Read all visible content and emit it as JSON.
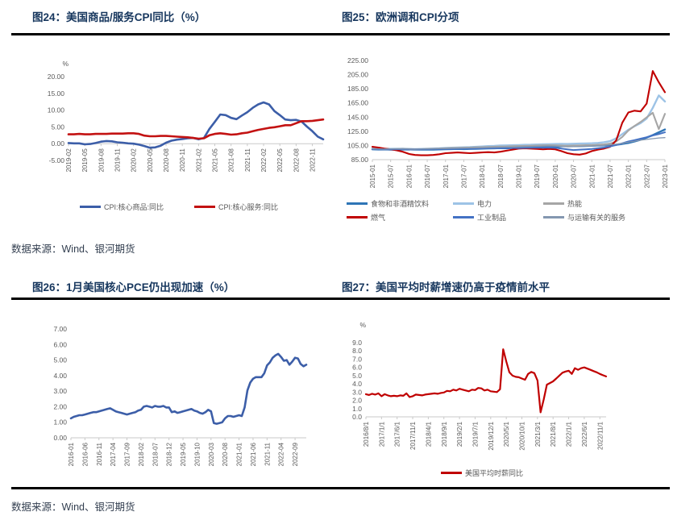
{
  "figures": [
    {
      "title": "图24：美国商品/服务CPI同比（%）"
    },
    {
      "title": "图25：欧洲调和CPI分项"
    },
    {
      "title": "图26：1月美国核心PCE仍出现加速（%）"
    },
    {
      "title": "图27：美国平均时薪增速仍高于疫情前水平"
    }
  ],
  "sources": {
    "top": "数据来源：Wind、银河期货",
    "bottom": "数据来源：Wind、银河期货"
  },
  "colors": {
    "title_navy": "#17375E",
    "rule_black": "#000000",
    "axis_gray": "#C9C9C9",
    "text_gray": "#595959"
  },
  "chart_data": [
    {
      "type": "line",
      "title": "美国商品/服务CPI同比",
      "unit": "%",
      "ylim": [
        -5,
        20
      ],
      "yticks": [
        -5,
        0,
        5,
        10,
        15,
        20
      ],
      "ydecimals": 2,
      "baseline": 0,
      "grid": false,
      "legend": true,
      "tick_every": 3,
      "x_tick_labels": [
        "2019-02",
        "2019-05",
        "2019-08",
        "2019-11",
        "2020-02",
        "2020-05",
        "2020-08",
        "2020-11",
        "2021-02",
        "2021-05",
        "2021-08",
        "2021-11",
        "2022-02",
        "2022-05",
        "2022-08",
        "2022-11"
      ],
      "x_range_note": "monthly 2019-02 to 2023-01",
      "series": [
        {
          "name": "CPI:核心商品:同比",
          "color": "#3C5EA8",
          "width": 2.6,
          "values": [
            0.2,
            0.1,
            0.1,
            -0.2,
            -0.1,
            0.2,
            0.6,
            0.8,
            0.7,
            0.4,
            0.3,
            0.1,
            0.0,
            -0.3,
            -0.7,
            -1.2,
            -1.1,
            -0.6,
            0.3,
            0.9,
            1.2,
            1.4,
            1.6,
            1.7,
            1.3,
            1.7,
            4.4,
            6.5,
            8.7,
            8.5,
            7.7,
            7.3,
            8.4,
            9.4,
            10.7,
            11.7,
            12.3,
            11.7,
            9.7,
            8.5,
            7.2,
            7.0,
            7.1,
            6.6,
            5.1,
            3.7,
            2.1,
            1.3
          ]
        },
        {
          "name": "CPI:核心服务:同比",
          "color": "#C31212",
          "width": 2.6,
          "values": [
            2.8,
            2.8,
            2.9,
            2.8,
            2.8,
            2.9,
            2.9,
            2.9,
            3.0,
            3.0,
            3.0,
            3.1,
            3.1,
            2.9,
            2.4,
            2.2,
            2.2,
            2.3,
            2.3,
            2.2,
            2.1,
            2.0,
            1.9,
            1.7,
            1.5,
            1.6,
            2.5,
            2.9,
            3.1,
            2.9,
            2.7,
            2.8,
            3.1,
            3.3,
            3.7,
            4.1,
            4.4,
            4.7,
            4.9,
            5.2,
            5.5,
            5.5,
            6.1,
            6.7,
            6.7,
            6.8,
            7.0,
            7.2
          ]
        }
      ]
    },
    {
      "type": "line",
      "title": "欧洲调和CPI分项",
      "unit": null,
      "ylim": [
        85,
        225
      ],
      "yticks": [
        85,
        105,
        125,
        145,
        165,
        185,
        205,
        225
      ],
      "ydecimals": 2,
      "baseline": 85,
      "grid": false,
      "legend": true,
      "tick_every": 3,
      "x_tick_labels": [
        "2015-01",
        "2015-07",
        "2016-01",
        "2016-07",
        "2017-01",
        "2017-07",
        "2018-01",
        "2018-07",
        "2019-01",
        "2019-07",
        "2020-01",
        "2020-07",
        "2021-01",
        "2021-07",
        "2022-01",
        "2022-07",
        "2023-01"
      ],
      "x_range_note": "bimonthly 2015-01 to 2023-01",
      "series": [
        {
          "name": "食物和非酒精饮料",
          "color": "#2E75B6",
          "width": 2.4,
          "values": [
            99.6,
            99.3,
            99.5,
            99.2,
            99.0,
            99.3,
            99.5,
            99.1,
            99.3,
            99.2,
            99.1,
            99.4,
            99.7,
            99.9,
            100.1,
            99.9,
            100.1,
            100.3,
            100.6,
            100.9,
            101.1,
            101.3,
            101.1,
            101.4,
            101.6,
            101.9,
            102.2,
            102.1,
            102.4,
            102.6,
            103.1,
            103.9,
            104.5,
            104.2,
            104.1,
            104.4,
            104.6,
            104.9,
            105.1,
            105.4,
            106.1,
            107.2,
            108.6,
            110.6,
            113.1,
            116.2,
            119.6,
            123.6,
            127.6
          ]
        },
        {
          "name": "电力",
          "color": "#9DC3E6",
          "width": 2.4,
          "values": [
            100.6,
            100.4,
            100.1,
            100.3,
            100.5,
            100.4,
            100.1,
            99.9,
            100.1,
            100.4,
            100.7,
            101.1,
            101.6,
            101.9,
            102.1,
            102.4,
            102.6,
            103.1,
            103.6,
            104.1,
            104.4,
            104.9,
            105.1,
            105.4,
            105.6,
            105.9,
            106.1,
            106.4,
            106.6,
            106.9,
            107.1,
            107.3,
            107.1,
            107.4,
            107.6,
            107.9,
            108.1,
            108.6,
            109.6,
            111.1,
            115.1,
            121.1,
            127.1,
            132.1,
            136.6,
            143.1,
            158.1,
            175.6,
            167.1
          ]
        },
        {
          "name": "热能",
          "color": "#A6A6A6",
          "width": 2.1,
          "values": [
            100.1,
            99.9,
            99.6,
            99.8,
            99.9,
            100.1,
            99.9,
            99.6,
            99.8,
            100.1,
            100.4,
            100.7,
            101.1,
            101.4,
            101.6,
            101.9,
            102.1,
            102.4,
            102.6,
            102.9,
            103.1,
            103.4,
            103.6,
            103.9,
            104.1,
            104.4,
            104.6,
            104.9,
            105.1,
            105.3,
            105.1,
            104.9,
            104.6,
            104.9,
            105.1,
            105.4,
            105.6,
            106.1,
            106.6,
            107.6,
            110.6,
            117.1,
            126.1,
            132.6,
            138.1,
            144.6,
            151.1,
            128.1,
            149.6
          ]
        },
        {
          "name": "燃气",
          "color": "#C00000",
          "width": 2.1,
          "values": [
            103.1,
            102.1,
            100.6,
            99.6,
            98.1,
            96.1,
            93.1,
            91.6,
            91.1,
            91.1,
            91.6,
            92.6,
            94.1,
            94.6,
            95.1,
            94.6,
            94.1,
            94.6,
            95.1,
            95.6,
            95.1,
            96.1,
            97.6,
            99.1,
            100.6,
            101.1,
            100.6,
            100.1,
            99.6,
            100.1,
            99.6,
            97.1,
            94.1,
            92.6,
            92.1,
            93.6,
            97.1,
            99.1,
            100.6,
            103.1,
            112.1,
            137.1,
            151.6,
            154.1,
            153.1,
            164.1,
            210.1,
            194.1,
            180.1
          ]
        },
        {
          "name": "工业制品",
          "color": "#4472C4",
          "width": 2.0,
          "values": [
            99.9,
            99.6,
            99.4,
            99.6,
            99.7,
            99.9,
            99.6,
            99.4,
            99.6,
            99.8,
            99.9,
            100.1,
            100.3,
            100.1,
            100.4,
            100.6,
            100.4,
            100.7,
            100.9,
            101.1,
            101.3,
            101.1,
            101.4,
            101.6,
            101.4,
            101.6,
            101.9,
            102.1,
            101.9,
            102.1,
            101.6,
            100.6,
            99.6,
            98.6,
            99.1,
            99.6,
            100.1,
            101.1,
            102.1,
            103.6,
            105.6,
            108.1,
            110.6,
            112.6,
            114.6,
            116.6,
            119.1,
            121.1,
            123.6
          ]
        },
        {
          "name": "与运输有关的服务",
          "color": "#8497B0",
          "width": 1.3,
          "values": [
            100.3,
            100.1,
            99.9,
            100.1,
            100.3,
            100.1,
            99.9,
            99.7,
            99.9,
            100.1,
            100.3,
            100.5,
            100.7,
            100.9,
            101.1,
            101.3,
            101.5,
            101.7,
            101.9,
            102.1,
            102.3,
            102.5,
            102.7,
            102.9,
            103.1,
            103.3,
            103.6,
            103.9,
            104.1,
            104.3,
            104.1,
            103.6,
            103.1,
            103.3,
            103.6,
            103.9,
            104.1,
            104.6,
            105.1,
            105.9,
            106.9,
            108.1,
            109.6,
            111.1,
            112.6,
            113.6,
            114.6,
            115.6,
            116.1
          ]
        }
      ]
    },
    {
      "type": "line",
      "title": "1月美国核心PCE仍出现加速",
      "unit": null,
      "ylim": [
        0,
        7
      ],
      "yticks": [
        0,
        1,
        2,
        3,
        4,
        5,
        6,
        7
      ],
      "ydecimals": 2,
      "baseline": 0,
      "grid": false,
      "legend": false,
      "tick_every": 5,
      "x_tick_labels": [
        "2016-01",
        "2016-06",
        "2016-11",
        "2017-04",
        "2017-09",
        "2018-02",
        "2018-07",
        "2018-12",
        "2019-05",
        "2019-10",
        "2020-03",
        "2020-08",
        "2021-01",
        "2021-06",
        "2021-11",
        "2022-04",
        "2022-09"
      ],
      "x_range_note": "monthly 2016-01 to 2023-01",
      "series": [
        {
          "color": "#3C5EA8",
          "width": 2.6,
          "values": [
            1.25,
            1.35,
            1.4,
            1.45,
            1.45,
            1.5,
            1.55,
            1.6,
            1.65,
            1.65,
            1.7,
            1.75,
            1.8,
            1.85,
            1.9,
            1.8,
            1.7,
            1.65,
            1.6,
            1.55,
            1.5,
            1.55,
            1.6,
            1.65,
            1.75,
            1.8,
            2.0,
            2.05,
            2.0,
            1.95,
            2.05,
            2.0,
            2.0,
            2.05,
            1.95,
            1.95,
            1.65,
            1.7,
            1.6,
            1.65,
            1.7,
            1.75,
            1.8,
            1.85,
            1.75,
            1.7,
            1.6,
            1.55,
            1.65,
            1.8,
            1.7,
            0.95,
            0.9,
            0.95,
            1.0,
            1.25,
            1.4,
            1.4,
            1.35,
            1.4,
            1.45,
            1.4,
            1.95,
            3.05,
            3.55,
            3.8,
            3.9,
            3.9,
            3.9,
            4.15,
            4.65,
            4.85,
            5.15,
            5.3,
            5.4,
            5.2,
            4.95,
            5.0,
            4.7,
            4.9,
            5.15,
            5.1,
            4.75,
            4.6,
            4.7
          ]
        }
      ]
    },
    {
      "type": "line",
      "title": "美国平均时薪增速仍高于疫情前水平",
      "unit": "%",
      "ylim": [
        0,
        9
      ],
      "yticks": [
        0,
        1,
        2,
        3,
        4,
        5,
        6,
        7,
        8,
        9
      ],
      "ydecimals": 1,
      "baseline": 0,
      "grid": false,
      "legend": true,
      "tick_every": 5,
      "x_tick_labels": [
        "2016/8/1",
        "2017/1/1",
        "2017/6/1",
        "2017/11/1",
        "2018/4/1",
        "2018/9/1",
        "2019/2/1",
        "2019/7/1",
        "2019/12/1",
        "2020/5/1",
        "2020/10/1",
        "2021/3/1",
        "2021/8/1",
        "2022/1/1",
        "2022/6/1",
        "2022/11/1"
      ],
      "x_range_note": "monthly 2016-08 to 2023-01",
      "series": [
        {
          "name": "美国平均时薪同比",
          "color": "#C00000",
          "width": 2.2,
          "values": [
            2.75,
            2.65,
            2.8,
            2.7,
            2.85,
            2.5,
            2.75,
            2.6,
            2.5,
            2.55,
            2.5,
            2.6,
            2.55,
            2.85,
            2.4,
            2.5,
            2.7,
            2.65,
            2.6,
            2.7,
            2.75,
            2.8,
            2.85,
            2.8,
            2.9,
            2.95,
            3.15,
            3.1,
            3.3,
            3.2,
            3.4,
            3.3,
            3.2,
            3.1,
            3.3,
            3.25,
            3.5,
            3.45,
            3.2,
            3.3,
            3.1,
            3.05,
            3.0,
            3.35,
            8.2,
            6.7,
            5.4,
            5.0,
            4.85,
            4.8,
            4.65,
            4.5,
            5.2,
            5.45,
            5.3,
            4.4,
            0.55,
            2.1,
            3.9,
            4.1,
            4.3,
            4.65,
            5.0,
            5.35,
            5.5,
            5.6,
            5.2,
            5.9,
            5.7,
            5.9,
            6.0,
            5.85,
            5.7,
            5.55,
            5.4,
            5.2,
            5.05,
            4.9
          ]
        }
      ]
    }
  ]
}
